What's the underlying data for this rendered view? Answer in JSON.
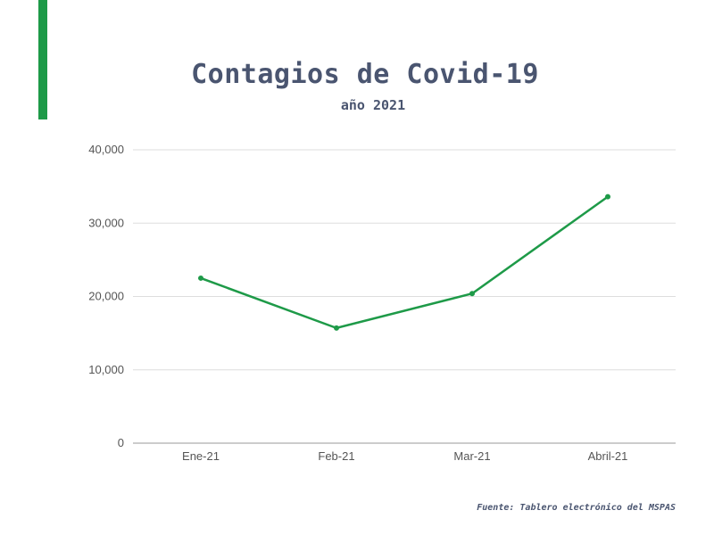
{
  "header": {
    "title": "Contagios de Covid-19",
    "subtitle": "año 2021"
  },
  "footer": {
    "source": "Fuente: Tablero electrónico del MSPAS"
  },
  "colors": {
    "accent": "#1e9a48",
    "line": "#1e9a48",
    "text": "#4a5570",
    "grid": "#dddddd"
  },
  "chart_data": {
    "type": "line",
    "title": "Contagios de Covid-19",
    "subtitle": "año 2021",
    "categories": [
      "Ene-21",
      "Feb-21",
      "Mar-21",
      "Abril-21"
    ],
    "values": [
      22500,
      15700,
      20400,
      33600
    ],
    "ylim": [
      0,
      40000
    ],
    "yticks": [
      0,
      10000,
      20000,
      30000,
      40000
    ],
    "ytick_labels": [
      "0",
      "10,000",
      "20,000",
      "30,000",
      "40,000"
    ],
    "grid": true,
    "legend": "none",
    "xlabel": "",
    "ylabel": ""
  }
}
